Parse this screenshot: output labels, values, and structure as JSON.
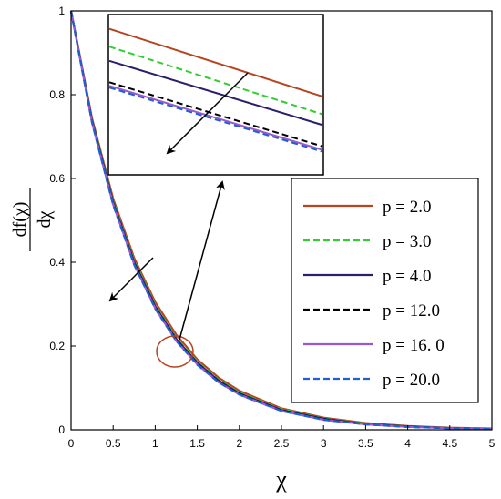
{
  "chart_data": {
    "type": "line",
    "xlabel": "χ",
    "ylabel": {
      "numerator": "df(χ)",
      "denominator": "dχ"
    },
    "xlim": [
      0,
      5
    ],
    "ylim": [
      0,
      1
    ],
    "x_ticks": [
      "0",
      "0.5",
      "1",
      "1.5",
      "2",
      "2.5",
      "3",
      "3.5",
      "4",
      "4.5",
      "5"
    ],
    "y_ticks": [
      "0",
      "0.2",
      "0.4",
      "0.6",
      "0.8",
      "1"
    ],
    "grid": false,
    "legend_position": "right",
    "x": [
      0,
      0.25,
      0.5,
      0.75,
      1,
      1.25,
      1.5,
      1.75,
      2,
      2.5,
      3,
      3.5,
      4,
      4.5,
      5
    ],
    "series": [
      {
        "name": "p = 2.0",
        "color": "#b5451f",
        "dash": "solid",
        "values": [
          1.0,
          0.743,
          0.552,
          0.41,
          0.305,
          0.227,
          0.168,
          0.125,
          0.093,
          0.051,
          0.029,
          0.016,
          0.009,
          0.005,
          0.003
        ]
      },
      {
        "name": "p = 3.0",
        "color": "#33cc33",
        "dash": "dashed",
        "values": [
          1.0,
          0.739,
          0.546,
          0.403,
          0.298,
          0.22,
          0.163,
          0.12,
          0.089,
          0.049,
          0.027,
          0.015,
          0.008,
          0.004,
          0.002
        ]
      },
      {
        "name": "p = 4.0",
        "color": "#2a1f6b",
        "dash": "solid",
        "values": [
          1.0,
          0.737,
          0.543,
          0.4,
          0.295,
          0.217,
          0.16,
          0.118,
          0.087,
          0.047,
          0.026,
          0.014,
          0.008,
          0.004,
          0.002
        ]
      },
      {
        "name": "p = 12.0",
        "color": "#000000",
        "dash": "dashed",
        "values": [
          1.0,
          0.734,
          0.539,
          0.396,
          0.291,
          0.213,
          0.157,
          0.115,
          0.085,
          0.046,
          0.025,
          0.013,
          0.007,
          0.004,
          0.002
        ]
      },
      {
        "name": "p = 16. 0",
        "color": "#9b59d0",
        "dash": "solid",
        "values": [
          1.0,
          0.733,
          0.538,
          0.395,
          0.29,
          0.212,
          0.156,
          0.114,
          0.084,
          0.045,
          0.024,
          0.013,
          0.007,
          0.004,
          0.002
        ]
      },
      {
        "name": "p = 20.0",
        "color": "#1f5fd0",
        "dash": "dashed",
        "values": [
          1.0,
          0.733,
          0.537,
          0.394,
          0.289,
          0.212,
          0.155,
          0.114,
          0.084,
          0.045,
          0.024,
          0.013,
          0.007,
          0.004,
          0.002
        ]
      }
    ],
    "inset": {
      "series_levels": [
        0.96,
        0.91,
        0.87,
        0.81,
        0.8,
        0.795
      ],
      "series_levels_end": [
        0.77,
        0.72,
        0.69,
        0.63,
        0.62,
        0.615
      ]
    }
  }
}
